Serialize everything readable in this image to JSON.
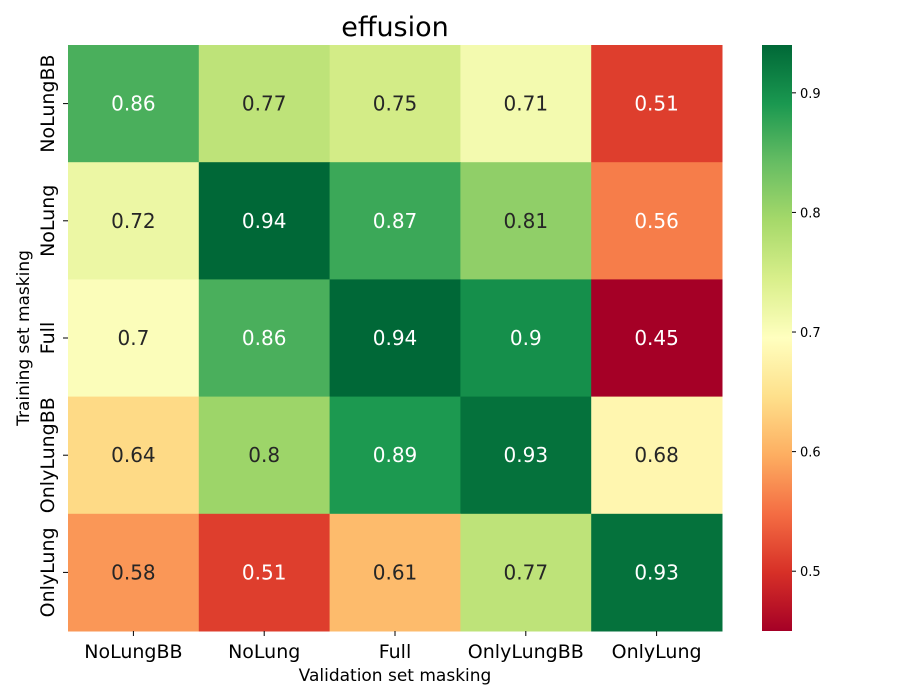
{
  "chart_data": {
    "type": "heatmap",
    "title": "effusion",
    "xlabel": "Validation set masking",
    "ylabel": "Training set masking",
    "x_categories": [
      "NoLungBB",
      "NoLung",
      "Full",
      "OnlyLungBB",
      "OnlyLung"
    ],
    "y_categories": [
      "NoLungBB",
      "NoLung",
      "Full",
      "OnlyLungBB",
      "OnlyLung"
    ],
    "values": [
      [
        0.86,
        0.77,
        0.75,
        0.71,
        0.51
      ],
      [
        0.72,
        0.94,
        0.87,
        0.81,
        0.56
      ],
      [
        0.7,
        0.86,
        0.94,
        0.9,
        0.45
      ],
      [
        0.64,
        0.8,
        0.89,
        0.93,
        0.68
      ],
      [
        0.58,
        0.51,
        0.61,
        0.77,
        0.93
      ]
    ],
    "labels": [
      [
        "0.86",
        "0.77",
        "0.75",
        "0.71",
        "0.51"
      ],
      [
        "0.72",
        "0.94",
        "0.87",
        "0.81",
        "0.56"
      ],
      [
        "0.7",
        "0.86",
        "0.94",
        "0.9",
        "0.45"
      ],
      [
        "0.64",
        "0.8",
        "0.89",
        "0.93",
        "0.68"
      ],
      [
        "0.58",
        "0.51",
        "0.61",
        "0.77",
        "0.93"
      ]
    ],
    "colormap": "RdYlGn",
    "vmin": 0.45,
    "vmax": 0.94,
    "colorbar_ticks": [
      0.5,
      0.6,
      0.7,
      0.8,
      0.9
    ],
    "colorbar_tick_labels": [
      "0.5",
      "0.6",
      "0.7",
      "0.8",
      "0.9"
    ]
  }
}
